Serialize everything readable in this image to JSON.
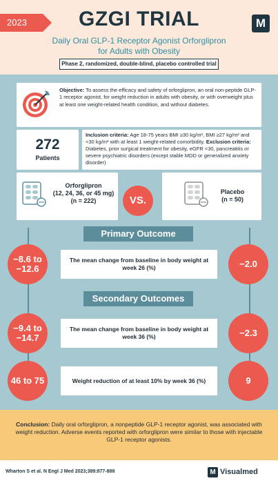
{
  "header": {
    "year": "2023",
    "title": "GZGI TRIAL",
    "subtitle_line1": "Daily Oral GLP-1 Receptor Agonist Orforglipron",
    "subtitle_line2": "for Adults with Obesity",
    "design": "Phase 2, randomized, double-blind, placebo controlled trial",
    "logo_letter": "M"
  },
  "objective": {
    "label": "Objective:",
    "text": " To assess the efficacy and safety of orforglipron, an oral non-peptide GLP-1 receptor agonist, for weight reduction in adults with obesity, or with overweight plus at least one weight-related health condition, and without diabetes."
  },
  "patients": {
    "count": "272",
    "label": "Patients"
  },
  "criteria": {
    "inclusion_label": "Inclusion criteria:",
    "inclusion_text": " Age 18-75 years BMI ≥30 kg/m², BMI ≥27 kg/m² and <30 kg/m² with at least 1 weight-related comorbidity.",
    "exclusion_label": " Exclusion criteria:",
    "exclusion_text": " Diabetes, prior surgical treatment for obesity, eGFR <30, pancreatitis or severe psychiatric disorders (except stable MDD or generalized anxiety disorder)"
  },
  "arms": {
    "treatment_name": "Orforglipron",
    "treatment_dose": "(12, 24, 36, or 45 mg)",
    "treatment_n": "(n = 222)",
    "vs": "VS.",
    "placebo_name": "Placebo",
    "placebo_n": "(n = 50)"
  },
  "primary": {
    "heading": "Primary Outcome",
    "outcome1": {
      "label": "The mean change from baseline in body weight at week 26 (%)",
      "treatment_value": "−8.6 to −12.6",
      "placebo_value": "−2.0"
    }
  },
  "secondary": {
    "heading": "Secondary Outcomes",
    "outcome1": {
      "label": "The mean change from baseline in body weight at week 36 (%)",
      "treatment_value": "−9.4 to −14.7",
      "placebo_value": "−2.3"
    },
    "outcome2": {
      "label": "Weight reduction of at least 10% by week 36 (%)",
      "treatment_value": "46 to 75",
      "placebo_value": "9"
    }
  },
  "conclusion": {
    "label": "Conclusion:",
    "text": " Daily oral orforglipron, a nonpeptide GLP-1 receptor agonist, was associated with weight reduction. Adverse events reported with orforglipron were similar to those with injectable GLP-1 receptor agonists."
  },
  "footer": {
    "citation": "Wharton S et al. N Engl J Med 2023;389:877-888",
    "brand_letter": "M",
    "brand_name": "Visualmed"
  },
  "colors": {
    "accent": "#ec5a4f",
    "navy": "#1f3640",
    "teal": "#5c8d9a",
    "panel": "#a6c9d1",
    "header_bg": "#fde9dc",
    "conclusion_bg": "#f9c97a"
  },
  "icons": [
    "target-icon",
    "pill-blister-icon"
  ]
}
